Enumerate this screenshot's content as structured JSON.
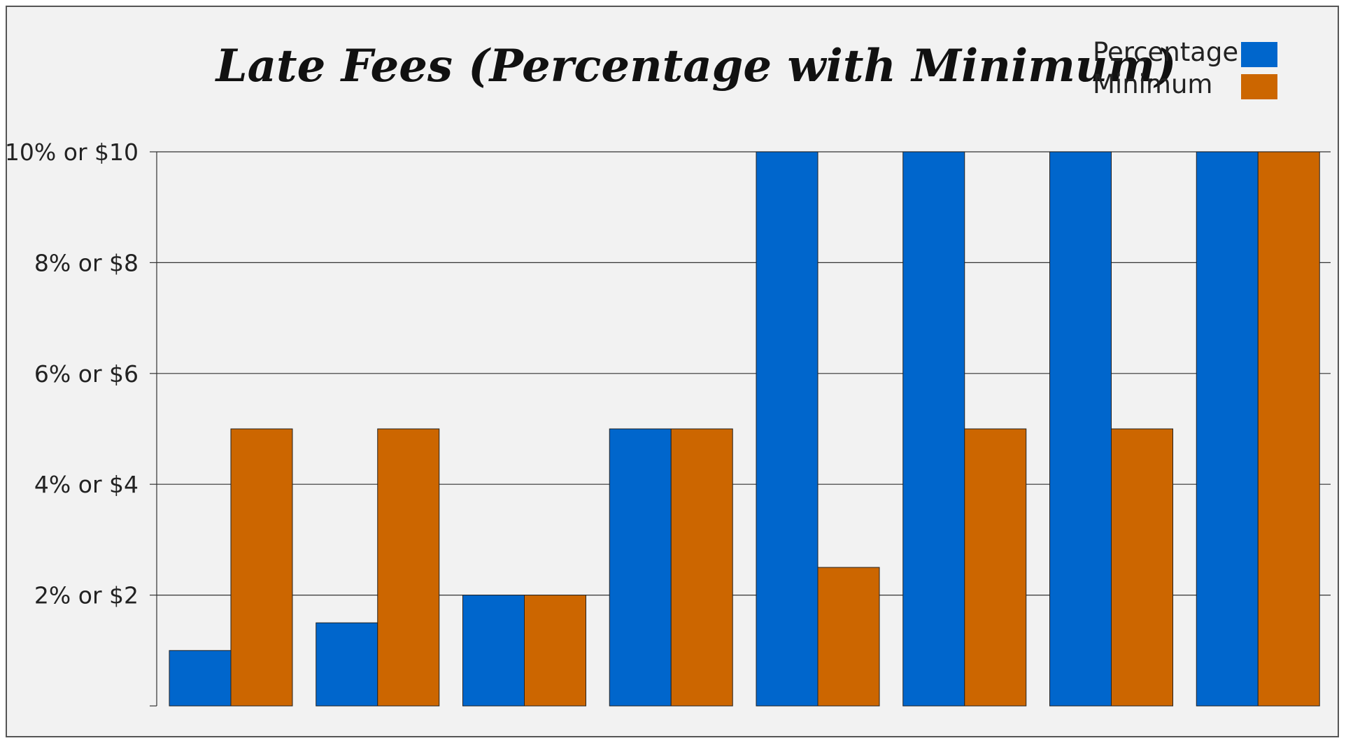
{
  "chart_data": {
    "type": "bar",
    "title": "Late Fees (Percentage with Minimum)",
    "xlabel": "",
    "ylabel": "",
    "ylim": [
      0,
      10
    ],
    "yticks": [
      2,
      4,
      6,
      8,
      10
    ],
    "ytick_labels": [
      "2% or $2",
      "4% or $4",
      "6% or $6",
      "8% or $8",
      "10% or $10"
    ],
    "categories": [
      "",
      "",
      "",
      "",
      "",
      "",
      "",
      ""
    ],
    "series": [
      {
        "name": "Percentage",
        "color": "#0066cc",
        "values": [
          1,
          1.5,
          2,
          5,
          10,
          10,
          10,
          10
        ]
      },
      {
        "name": "Minimum",
        "color": "#cc6600",
        "values": [
          5,
          5,
          2,
          5,
          2.5,
          5,
          5,
          10
        ]
      }
    ],
    "grid": true,
    "legend_position": "top-right"
  }
}
